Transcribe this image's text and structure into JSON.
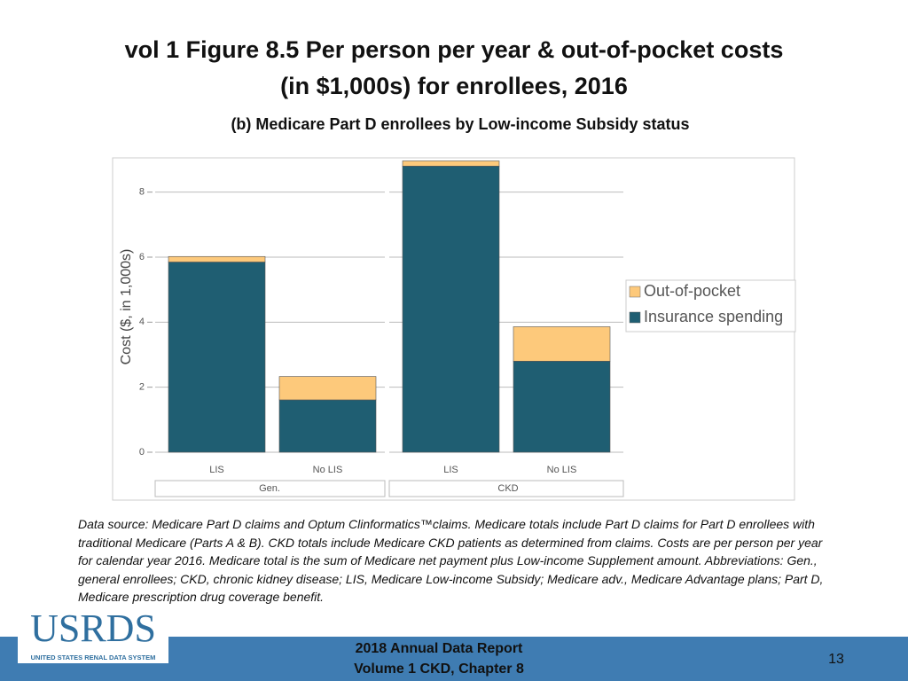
{
  "chart_data": {
    "type": "stacked_bar",
    "title": [
      "vol 1 Figure 8.5 Per person per year & out-of-pocket costs",
      "(in $1,000s) for enrollees, 2016"
    ],
    "subtitle": "(b) Medicare Part D enrollees by Low-income Subsidy status",
    "ylabel": "Cost ($, in 1,000s)",
    "groups": [
      "Gen.",
      "CKD"
    ],
    "categories": [
      "LIS",
      "No LIS",
      "LIS",
      "No LIS"
    ],
    "series": [
      {
        "name": "Insurance spending",
        "color": "#1f5e72",
        "values": [
          5.85,
          1.61,
          8.8,
          2.8
        ]
      },
      {
        "name": "Out-of-pocket",
        "color": "#fdc97b",
        "values": [
          0.17,
          0.72,
          0.16,
          1.06
        ]
      }
    ],
    "ylim": [
      0,
      9
    ],
    "yticks": [
      0,
      2,
      4,
      6,
      8
    ],
    "grid": true,
    "legend": "right",
    "note": "Data source: Medicare Part D claims and Optum Clinformatics™claims. Medicare totals include Part D claims for Part D enrollees with traditional Medicare (Parts A & B). CKD totals include Medicare CKD patients as determined from claims. Costs are per person per year for calendar year 2016. Medicare total is the sum of Medicare net payment plus Low-income Supplement amount. Abbreviations: Gen., general enrollees; CKD, chronic kidney disease; LIS, Medicare Low-income Subsidy; Medicare adv., Medicare Advantage plans; Part D, Medicare prescription drug coverage benefit."
  },
  "footer": {
    "logo": "USRDS",
    "logo_subtitle": "UNITED STATES RENAL DATA SYSTEM",
    "lines": [
      "2018 Annual Data Report",
      "Volume 1 CKD, Chapter 8"
    ],
    "page": "13"
  }
}
